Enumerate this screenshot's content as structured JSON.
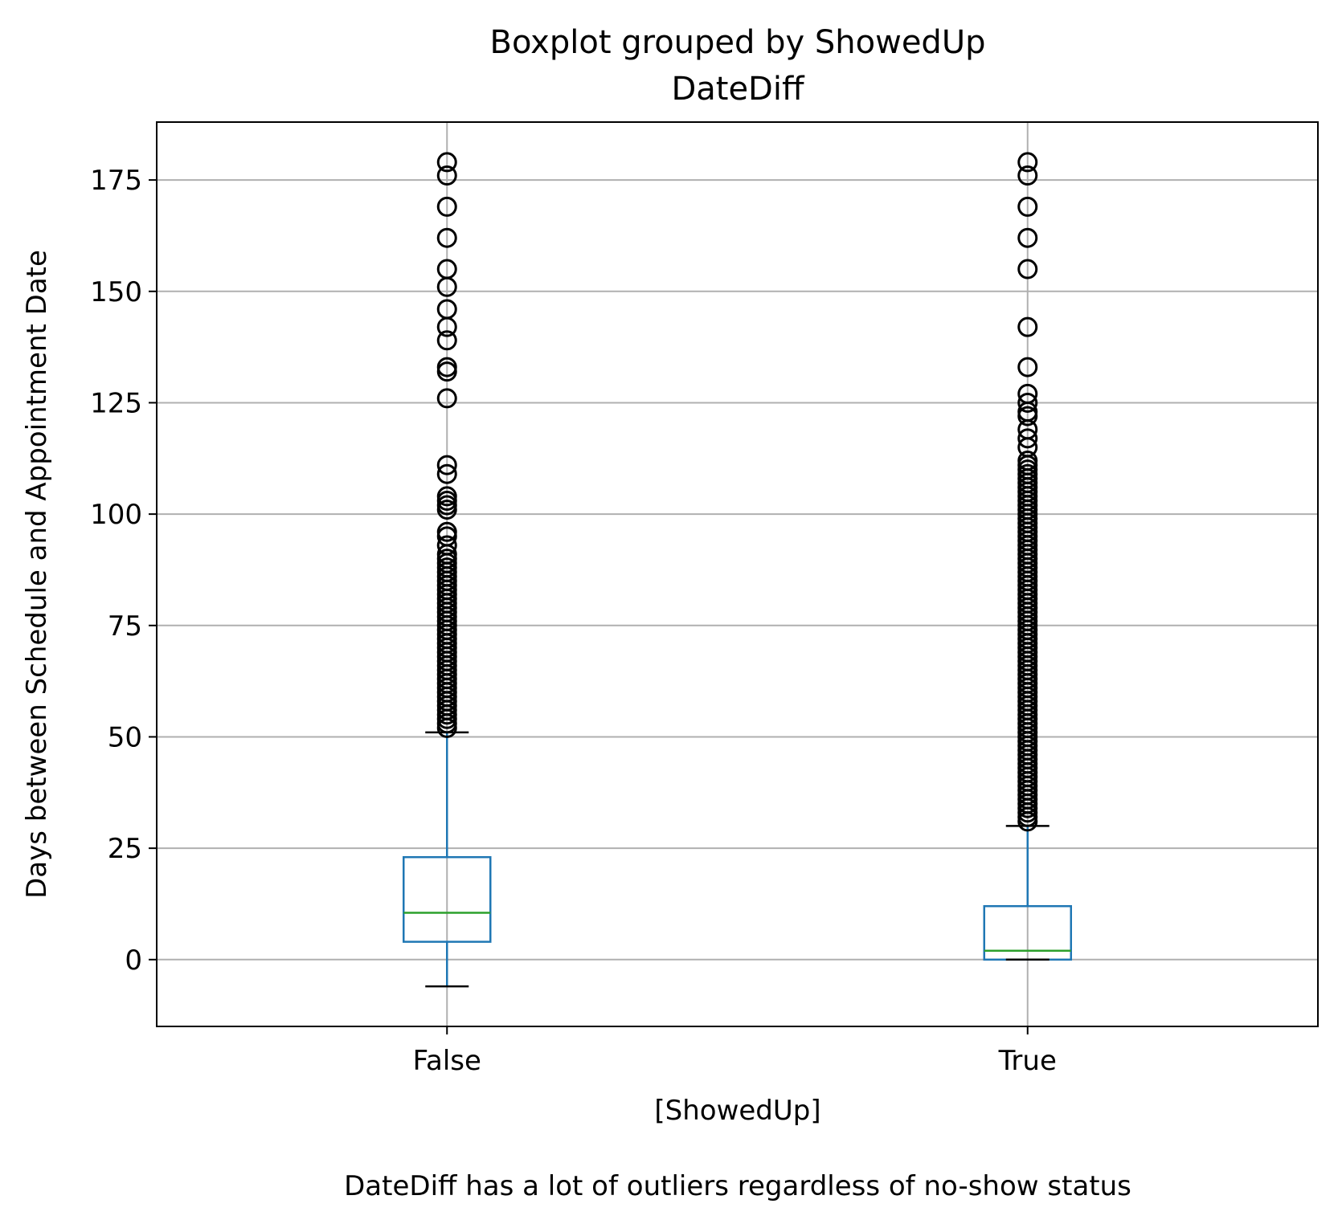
{
  "chart_data": {
    "type": "box",
    "suptitle": "Boxplot grouped by ShowedUp",
    "title": "DateDiff",
    "xlabel": "[ShowedUp]",
    "ylabel": "Days between Schedule and Appointment Date",
    "caption": "DateDiff has a lot of outliers regardless of no-show status",
    "ylim": [
      -15,
      188
    ],
    "yticks": [
      0,
      25,
      50,
      75,
      100,
      125,
      150,
      175
    ],
    "grid": true,
    "categories": [
      "False",
      "True"
    ],
    "boxes": [
      {
        "category": "False",
        "whisker_low": -6,
        "q1": 4,
        "median": 10.5,
        "q3": 23,
        "whisker_high": 51,
        "outliers": [
          52,
          53,
          54,
          55,
          56,
          57,
          58,
          59,
          60,
          61,
          62,
          63,
          64,
          65,
          66,
          67,
          68,
          69,
          70,
          71,
          72,
          73,
          74,
          75,
          76,
          77,
          78,
          79,
          80,
          81,
          82,
          83,
          84,
          85,
          86,
          87,
          88,
          89,
          90,
          91,
          93,
          95,
          96,
          101,
          102,
          103,
          104,
          109,
          111,
          126,
          132,
          133,
          139,
          142,
          146,
          151,
          155,
          162,
          169,
          176,
          179
        ]
      },
      {
        "category": "True",
        "whisker_low": 0,
        "q1": 0,
        "median": 2,
        "q3": 12,
        "whisker_high": 30,
        "outliers": [
          31,
          32,
          33,
          34,
          35,
          36,
          37,
          38,
          39,
          40,
          41,
          42,
          43,
          44,
          45,
          46,
          47,
          48,
          49,
          50,
          51,
          52,
          53,
          54,
          55,
          56,
          57,
          58,
          59,
          60,
          61,
          62,
          63,
          64,
          65,
          66,
          67,
          68,
          69,
          70,
          71,
          72,
          73,
          74,
          75,
          76,
          77,
          78,
          79,
          80,
          81,
          82,
          83,
          84,
          85,
          86,
          87,
          88,
          89,
          90,
          91,
          92,
          93,
          94,
          95,
          96,
          97,
          98,
          99,
          100,
          101,
          102,
          103,
          104,
          105,
          106,
          107,
          108,
          109,
          110,
          111,
          112,
          115,
          117,
          119,
          122,
          123,
          125,
          127,
          133,
          142,
          155,
          162,
          169,
          176,
          179
        ]
      }
    ],
    "colors": {
      "box": "#1f77b4",
      "median": "#2ca02c",
      "caps": "#000000",
      "outlier": "#000000",
      "grid": "#b0b0b0"
    }
  }
}
